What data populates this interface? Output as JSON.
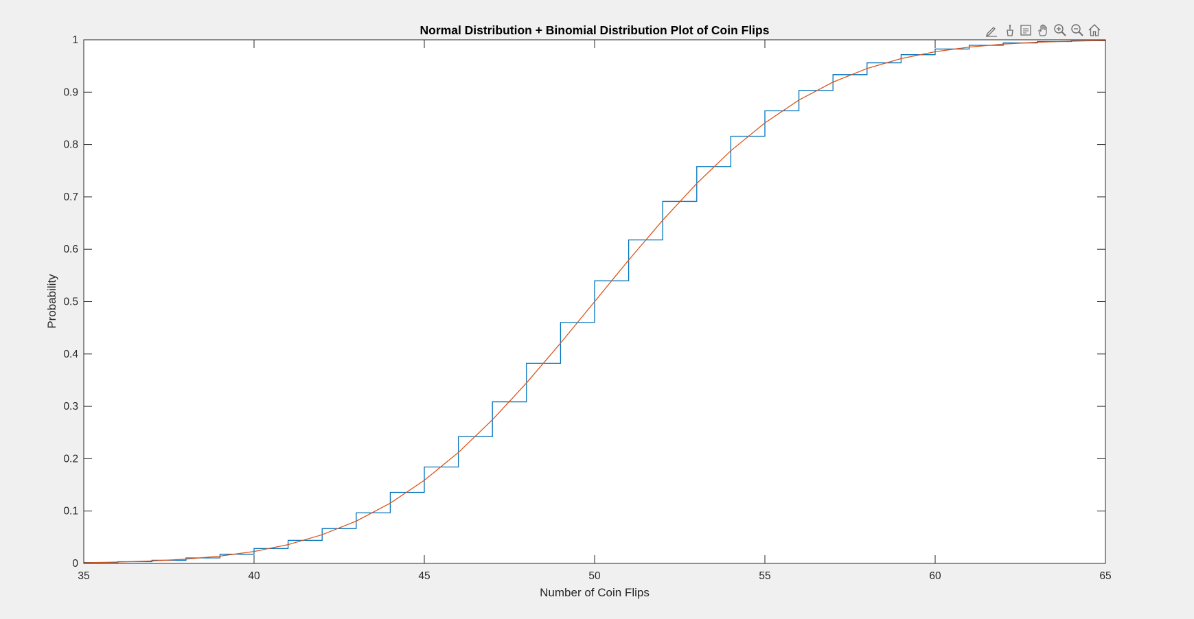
{
  "toolbar": {
    "buttons": [
      {
        "icon": "edit-icon",
        "name": "edit-plot-button"
      },
      {
        "icon": "brush-icon",
        "name": "brush-button"
      },
      {
        "icon": "datatip-icon",
        "name": "data-tips-button"
      },
      {
        "icon": "pan-hand-icon",
        "name": "pan-button"
      },
      {
        "icon": "zoom-in-icon",
        "name": "zoom-in-button"
      },
      {
        "icon": "zoom-out-icon",
        "name": "zoom-out-button"
      },
      {
        "icon": "home-icon",
        "name": "restore-view-button"
      }
    ]
  },
  "chart_data": {
    "type": "line",
    "title": "Normal Distribution + Binomial Distribution Plot of Coin Flips",
    "xlabel": "Number of Coin Flips",
    "ylabel": "Probability",
    "xlim": [
      35,
      65
    ],
    "ylim": [
      0,
      1
    ],
    "xticks": [
      "35",
      "40",
      "45",
      "50",
      "55",
      "60",
      "65"
    ],
    "yticks": [
      "0",
      "0.1",
      "0.2",
      "0.3",
      "0.4",
      "0.5",
      "0.6",
      "0.7",
      "0.8",
      "0.9",
      "1"
    ],
    "grid": false,
    "legend": "none",
    "series": [
      {
        "style": "stairs",
        "color": "#0072bd",
        "x": [
          35,
          36,
          37,
          38,
          39,
          40,
          41,
          42,
          43,
          44,
          45,
          46,
          47,
          48,
          49,
          50,
          51,
          52,
          53,
          54,
          55,
          56,
          57,
          58,
          59,
          60,
          61,
          62,
          63,
          64,
          65
        ],
        "y": [
          0.0018,
          0.0033,
          0.006,
          0.0105,
          0.0176,
          0.0284,
          0.044,
          0.0666,
          0.0967,
          0.1356,
          0.1841,
          0.2421,
          0.3086,
          0.3822,
          0.4602,
          0.5398,
          0.6178,
          0.6914,
          0.7579,
          0.8159,
          0.8644,
          0.9033,
          0.9334,
          0.956,
          0.9716,
          0.9824,
          0.9895,
          0.994,
          0.9967,
          0.9982,
          0.9991
        ]
      },
      {
        "style": "line",
        "color": "#d95319",
        "x": [
          35,
          36,
          37,
          38,
          39,
          40,
          41,
          42,
          43,
          44,
          45,
          46,
          47,
          48,
          49,
          50,
          51,
          52,
          53,
          54,
          55,
          56,
          57,
          58,
          59,
          60,
          61,
          62,
          63,
          64,
          65
        ],
        "y": [
          0.0013,
          0.0026,
          0.0047,
          0.0082,
          0.0139,
          0.0228,
          0.0359,
          0.0548,
          0.0808,
          0.1151,
          0.1587,
          0.2119,
          0.2743,
          0.3446,
          0.4207,
          0.5,
          0.5793,
          0.6554,
          0.7257,
          0.7881,
          0.8413,
          0.8849,
          0.9192,
          0.9452,
          0.9641,
          0.9772,
          0.9861,
          0.9918,
          0.9953,
          0.9974,
          0.9987
        ]
      }
    ]
  }
}
